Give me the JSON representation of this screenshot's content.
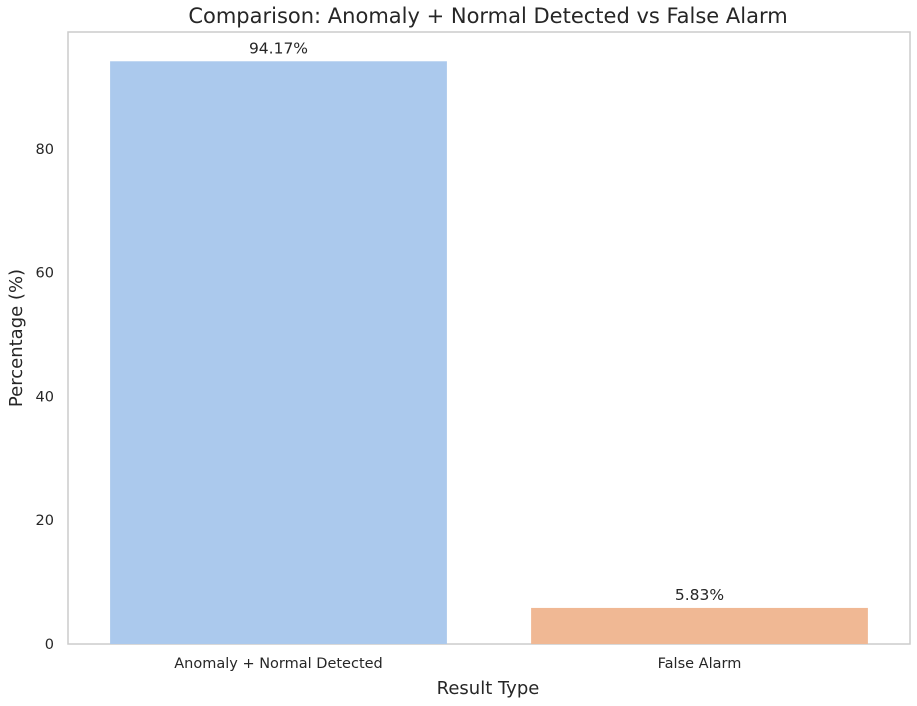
{
  "chart_data": {
    "type": "bar",
    "title": "Comparison: Anomaly + Normal Detected vs False Alarm",
    "xlabel": "Result Type",
    "ylabel": "Percentage (%)",
    "categories": [
      "Anomaly + Normal Detected",
      "False Alarm"
    ],
    "values": [
      94.17,
      5.83
    ],
    "data_labels": [
      "94.17%",
      "5.83%"
    ],
    "colors": [
      "#abc9ed",
      "#f0b894"
    ],
    "ylim": [
      0,
      98.9
    ],
    "yticks": [
      0,
      20,
      40,
      60,
      80
    ],
    "grid": false,
    "frame_color": "#cccccc"
  }
}
